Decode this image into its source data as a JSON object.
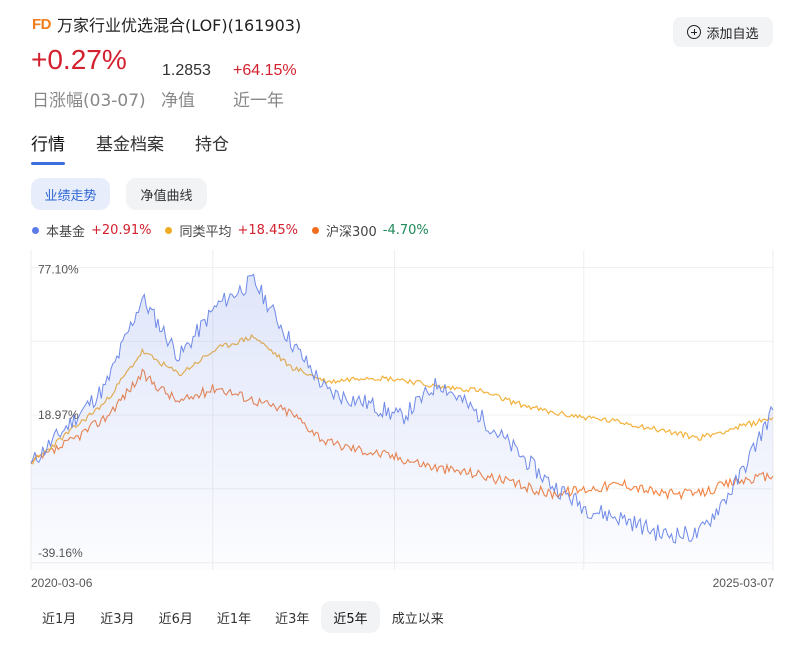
{
  "header": {
    "logo_text": "FD",
    "title": "万家行业优选混合(LOF)(161903)",
    "add_label": "添加自选"
  },
  "summary": {
    "daily_change": "+0.27%",
    "daily_label": "日涨幅(03-07)",
    "nav_value": "1.2853",
    "nav_label": "净值",
    "year_change": "+64.15%",
    "year_label": "近一年"
  },
  "tabs": [
    {
      "label": "行情",
      "active": true
    },
    {
      "label": "基金档案",
      "active": false
    },
    {
      "label": "持仓",
      "active": false
    }
  ],
  "chart_modes": [
    {
      "label": "业绩走势",
      "active": true
    },
    {
      "label": "净值曲线",
      "active": false
    }
  ],
  "legend": [
    {
      "name": "本基金",
      "value": "+20.91%",
      "color": "#5b7be8",
      "value_color": "#d3202e"
    },
    {
      "name": "同类平均",
      "value": "+18.45%",
      "color": "#f0ac24",
      "value_color": "#d3202e"
    },
    {
      "name": "沪深300",
      "value": "-4.70%",
      "color": "#f06c1e",
      "value_color": "#1e8a5a"
    }
  ],
  "ranges": [
    {
      "label": "近1月",
      "active": false
    },
    {
      "label": "近3月",
      "active": false
    },
    {
      "label": "近6月",
      "active": false
    },
    {
      "label": "近1年",
      "active": false
    },
    {
      "label": "近3年",
      "active": false
    },
    {
      "label": "近5年",
      "active": true
    },
    {
      "label": "成立以来",
      "active": false
    }
  ],
  "chart_data": {
    "type": "line",
    "y_tick_labels": [
      "77.10%",
      "18.97%",
      "-39.16%"
    ],
    "y_ticks": [
      77.1,
      18.97,
      -39.16
    ],
    "ylim": [
      -42,
      84
    ],
    "x_start_label": "2020-03-06",
    "x_end_label": "2025-03-07",
    "x": [
      0,
      0.05,
      0.1,
      0.15,
      0.2,
      0.25,
      0.3,
      0.35,
      0.4,
      0.45,
      0.5,
      0.55,
      0.6,
      0.65,
      0.7,
      0.75,
      0.8,
      0.85,
      0.9,
      0.95,
      1.0
    ],
    "series": [
      {
        "name": "本基金",
        "color": "#6f8ae8",
        "values": [
          0,
          15,
          30,
          65,
          42,
          62,
          72,
          48,
          28,
          24,
          18,
          32,
          20,
          6,
          -8,
          -18,
          -22,
          -28,
          -28,
          -8,
          21
        ]
      },
      {
        "name": "同类平均",
        "color": "#f3b23c",
        "values": [
          0,
          12,
          24,
          44,
          35,
          45,
          50,
          38,
          32,
          34,
          33,
          30,
          29,
          24,
          20,
          18,
          16,
          13,
          10,
          14,
          18
        ]
      },
      {
        "name": "沪深300",
        "color": "#f06c1e",
        "values": [
          0,
          8,
          18,
          35,
          24,
          30,
          25,
          20,
          8,
          5,
          2,
          -2,
          -4,
          -8,
          -12,
          -10,
          -8,
          -12,
          -12,
          -7,
          -5
        ]
      }
    ]
  }
}
